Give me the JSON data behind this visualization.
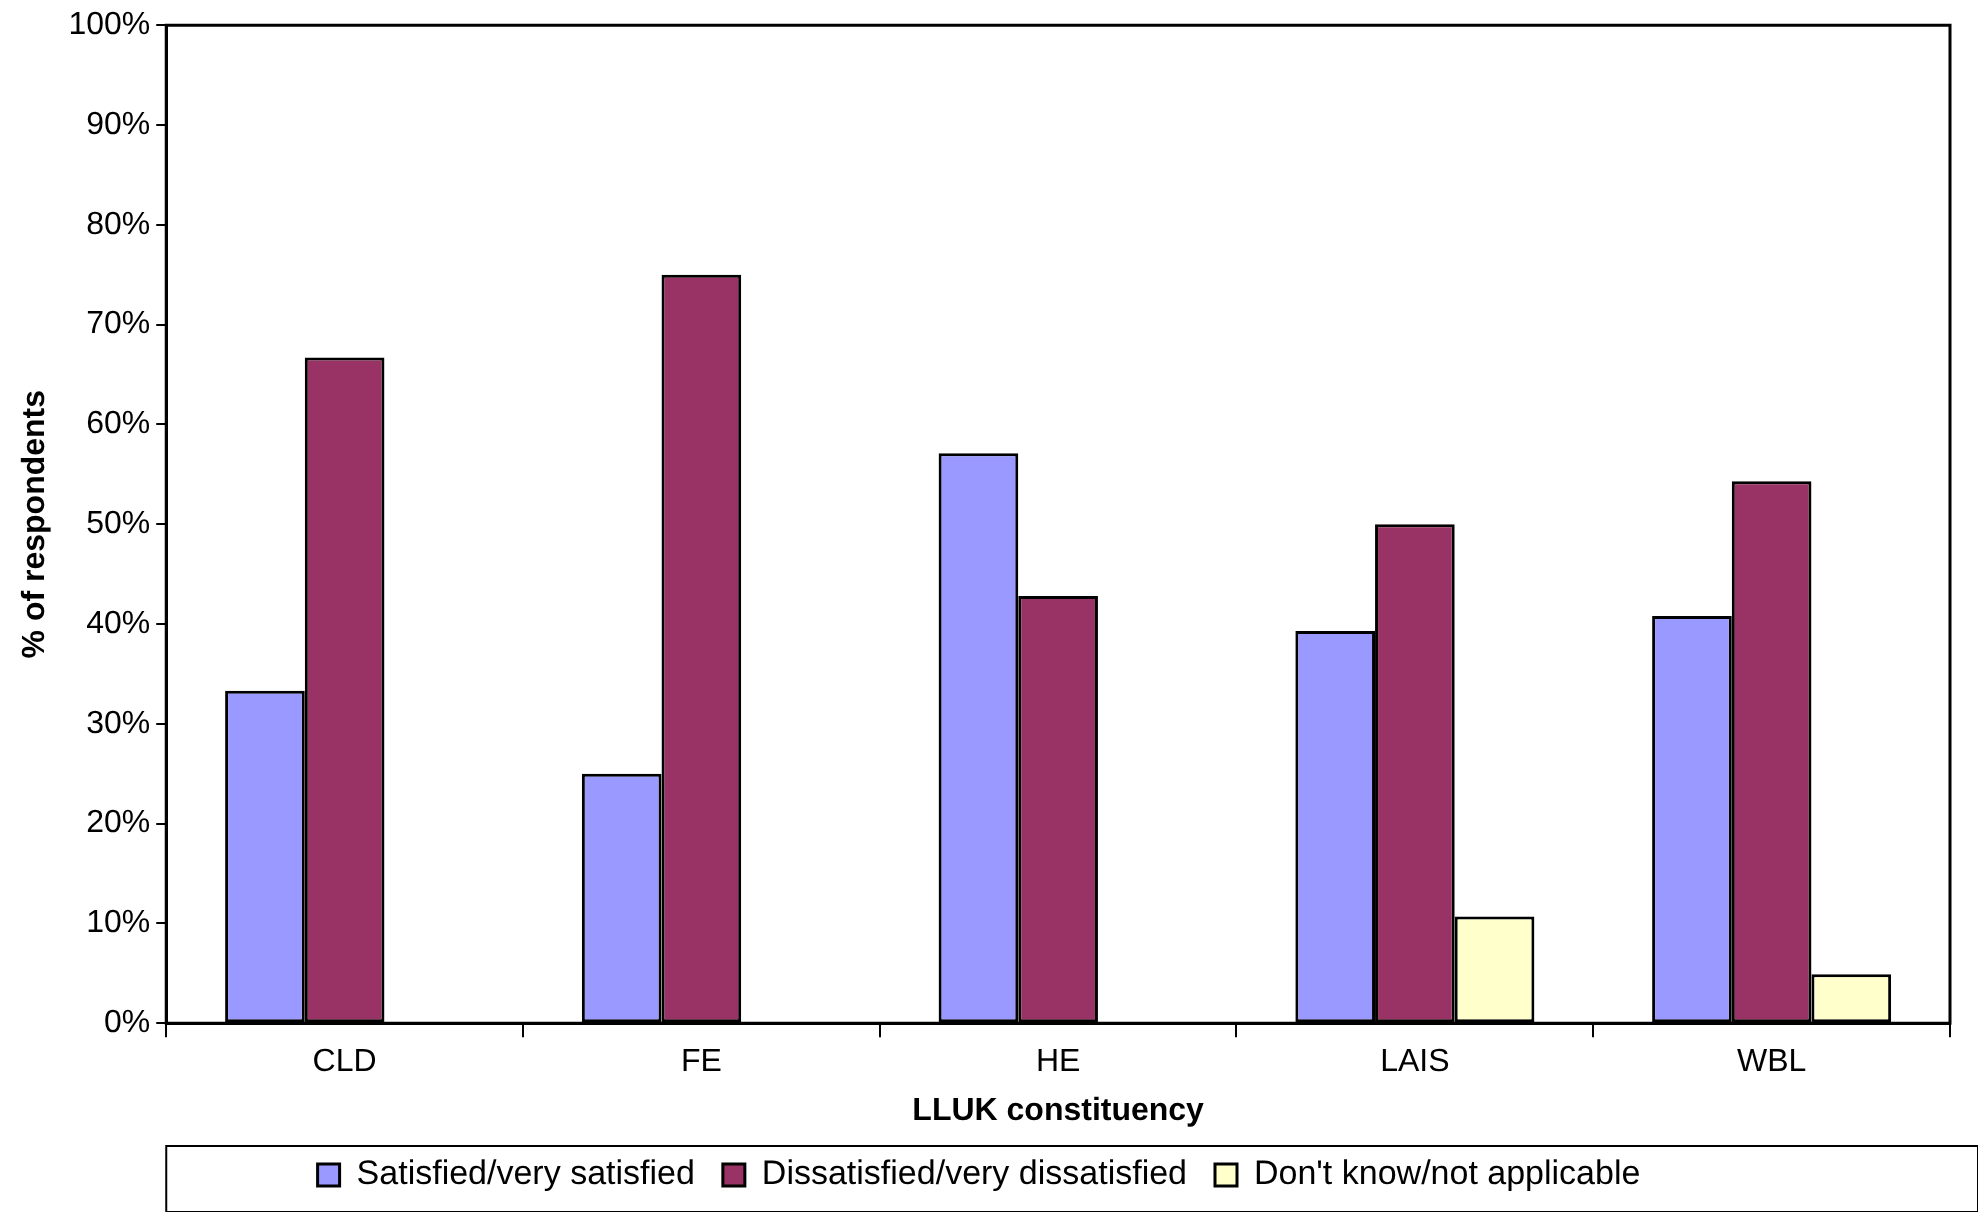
{
  "chart_data": {
    "type": "bar",
    "xlabel": "LLUK constituency",
    "ylabel": "% of respondents",
    "categories": [
      "CLD",
      "FE",
      "HE",
      "LAIS",
      "WBL"
    ],
    "series": [
      {
        "name": "Satisfied/very satisfied",
        "color": "#9999ff",
        "values": [
          33.3,
          25,
          57.1,
          39.3,
          40.8
        ]
      },
      {
        "name": "Dissatisfied/very dissatisfied",
        "color": "#993366",
        "values": [
          66.7,
          75,
          42.8,
          50,
          54.3
        ]
      },
      {
        "name": "Don't know/not applicable",
        "color": "#ffffcc",
        "values": [
          0,
          0,
          0,
          10.7,
          4.9
        ]
      }
    ],
    "ylim": [
      0,
      100
    ],
    "yticks": [
      {
        "value": 0,
        "label": "0%"
      },
      {
        "value": 10,
        "label": "10%"
      },
      {
        "value": 20,
        "label": "20%"
      },
      {
        "value": 30,
        "label": "30%"
      },
      {
        "value": 40,
        "label": "40%"
      },
      {
        "value": 50,
        "label": "50%"
      },
      {
        "value": 60,
        "label": "60%"
      },
      {
        "value": 70,
        "label": "70%"
      },
      {
        "value": 80,
        "label": "80%"
      },
      {
        "value": 90,
        "label": "90%"
      },
      {
        "value": 100,
        "label": "100%"
      }
    ],
    "grid": false,
    "legend": "bottom"
  }
}
